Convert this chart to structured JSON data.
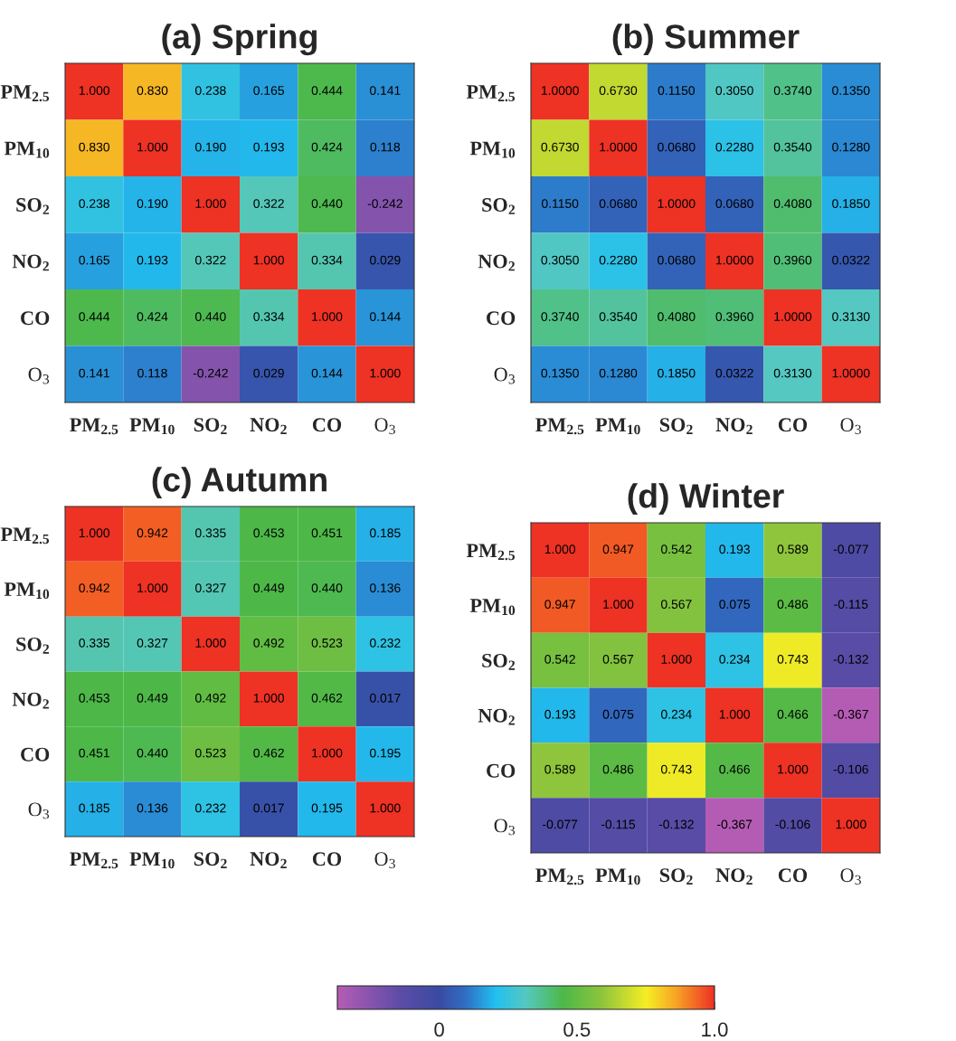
{
  "chart_data": [
    {
      "type": "heatmap",
      "title": "(a) Spring",
      "categories": [
        "PM$_{2.5}$",
        "PM$_{10}$",
        "SO$_{2}$",
        "NO$_{2}$",
        "CO",
        "O$_{3}$"
      ],
      "y_categories": [
        "PM$_{2.5}$",
        "PM$_{10}$",
        "SO$_{2}$",
        "NO$_{2}$",
        "CO",
        "O$_{3}$"
      ],
      "cells": [
        [
          1.0,
          0.83,
          0.238,
          0.165,
          0.444,
          0.141
        ],
        [
          0.83,
          1.0,
          0.19,
          0.193,
          0.424,
          0.118
        ],
        [
          0.238,
          0.19,
          1.0,
          0.322,
          0.44,
          -0.242
        ],
        [
          0.165,
          0.193,
          0.322,
          1.0,
          0.334,
          0.029
        ],
        [
          0.444,
          0.424,
          0.44,
          0.334,
          1.0,
          0.144
        ],
        [
          0.141,
          0.118,
          -0.242,
          0.029,
          0.144,
          1.0
        ]
      ],
      "cell_labels": [
        [
          "1.000",
          "0.830",
          "0.238",
          "0.165",
          "0.444",
          "0.141"
        ],
        [
          "0.830",
          "1.000",
          "0.190",
          "0.193",
          "0.424",
          "0.118"
        ],
        [
          "0.238",
          "0.190",
          "1.000",
          "0.322",
          "0.440",
          "-0.242"
        ],
        [
          "0.165",
          "0.193",
          "0.322",
          "1.000",
          "0.334",
          "0.029"
        ],
        [
          "0.444",
          "0.424",
          "0.440",
          "0.334",
          "1.000",
          "0.144"
        ],
        [
          "0.141",
          "0.118",
          "-0.242",
          "0.029",
          "0.144",
          "1.000"
        ]
      ]
    },
    {
      "type": "heatmap",
      "title": "(b) Summer",
      "categories": [
        "PM$_{2.5}$",
        "PM$_{10}$",
        "SO$_{2}$",
        "NO$_{2}$",
        "CO",
        "O$_{3}$"
      ],
      "y_categories": [
        "PM$_{2.5}$",
        "PM$_{10}$",
        "SO$_{2}$",
        "NO$_{2}$",
        "CO",
        "O$_{3}$"
      ],
      "cells": [
        [
          1.0,
          0.673,
          0.115,
          0.305,
          0.374,
          0.135
        ],
        [
          0.673,
          1.0,
          0.068,
          0.228,
          0.354,
          0.128
        ],
        [
          0.115,
          0.068,
          1.0,
          0.068,
          0.408,
          0.185
        ],
        [
          0.305,
          0.228,
          0.068,
          1.0,
          0.396,
          0.0322
        ],
        [
          0.374,
          0.354,
          0.408,
          0.396,
          1.0,
          0.313
        ],
        [
          0.135,
          0.128,
          0.185,
          0.0322,
          0.313,
          1.0
        ]
      ],
      "cell_labels": [
        [
          "1.0000",
          "0.6730",
          "0.1150",
          "0.3050",
          "0.3740",
          "0.1350"
        ],
        [
          "0.6730",
          "1.0000",
          "0.0680",
          "0.2280",
          "0.3540",
          "0.1280"
        ],
        [
          "0.1150",
          "0.0680",
          "1.0000",
          "0.0680",
          "0.4080",
          "0.1850"
        ],
        [
          "0.3050",
          "0.2280",
          "0.0680",
          "1.0000",
          "0.3960",
          "0.0322"
        ],
        [
          "0.3740",
          "0.3540",
          "0.4080",
          "0.3960",
          "1.0000",
          "0.3130"
        ],
        [
          "0.1350",
          "0.1280",
          "0.1850",
          "0.0322",
          "0.3130",
          "1.0000"
        ]
      ]
    },
    {
      "type": "heatmap",
      "title": "(c) Autumn",
      "categories": [
        "PM$_{2.5}$",
        "PM$_{10}$",
        "SO$_{2}$",
        "NO$_{2}$",
        "CO",
        "O$_{3}$"
      ],
      "y_categories": [
        "PM$_{2.5}$",
        "PM$_{10}$",
        "SO$_{2}$",
        "NO$_{2}$",
        "CO",
        "O$_{3}$"
      ],
      "cells": [
        [
          1.0,
          0.942,
          0.335,
          0.453,
          0.451,
          0.185
        ],
        [
          0.942,
          1.0,
          0.327,
          0.449,
          0.44,
          0.136
        ],
        [
          0.335,
          0.327,
          1.0,
          0.492,
          0.523,
          0.232
        ],
        [
          0.453,
          0.449,
          0.492,
          1.0,
          0.462,
          0.017
        ],
        [
          0.451,
          0.44,
          0.523,
          0.462,
          1.0,
          0.195
        ],
        [
          0.185,
          0.136,
          0.232,
          0.017,
          0.195,
          1.0
        ]
      ],
      "cell_labels": [
        [
          "1.000",
          "0.942",
          "0.335",
          "0.453",
          "0.451",
          "0.185"
        ],
        [
          "0.942",
          "1.000",
          "0.327",
          "0.449",
          "0.440",
          "0.136"
        ],
        [
          "0.335",
          "0.327",
          "1.000",
          "0.492",
          "0.523",
          "0.232"
        ],
        [
          "0.453",
          "0.449",
          "0.492",
          "1.000",
          "0.462",
          "0.017"
        ],
        [
          "0.451",
          "0.440",
          "0.523",
          "0.462",
          "1.000",
          "0.195"
        ],
        [
          "0.185",
          "0.136",
          "0.232",
          "0.017",
          "0.195",
          "1.000"
        ]
      ]
    },
    {
      "type": "heatmap",
      "title": "(d) Winter",
      "categories": [
        "PM$_{2.5}$",
        "PM$_{10}$",
        "SO$_{2}$",
        "NO$_{2}$",
        "CO",
        "O$_{3}$"
      ],
      "y_categories": [
        "PM$_{2.5}$",
        "PM$_{10}$",
        "SO$_{2}$",
        "NO$_{2}$",
        "CO",
        "O$_{3}$"
      ],
      "cells": [
        [
          1.0,
          0.947,
          0.542,
          0.193,
          0.589,
          -0.077
        ],
        [
          0.947,
          1.0,
          0.567,
          0.075,
          0.486,
          -0.115
        ],
        [
          0.542,
          0.567,
          1.0,
          0.234,
          0.743,
          -0.132
        ],
        [
          0.193,
          0.075,
          0.234,
          1.0,
          0.466,
          -0.367
        ],
        [
          0.589,
          0.486,
          0.743,
          0.466,
          1.0,
          -0.106
        ],
        [
          -0.077,
          -0.115,
          -0.132,
          -0.367,
          -0.106,
          1.0
        ]
      ],
      "cell_labels": [
        [
          "1.000",
          "0.947",
          "0.542",
          "0.193",
          "0.589",
          "-0.077"
        ],
        [
          "0.947",
          "1.000",
          "0.567",
          "0.075",
          "0.486",
          "-0.115"
        ],
        [
          "0.542",
          "0.567",
          "1.000",
          "0.234",
          "0.743",
          "-0.132"
        ],
        [
          "0.193",
          "0.075",
          "0.234",
          "1.000",
          "0.466",
          "-0.367"
        ],
        [
          "0.589",
          "0.486",
          "0.743",
          "0.466",
          "1.000",
          "-0.106"
        ],
        [
          "-0.077",
          "-0.115",
          "-0.132",
          "-0.367",
          "-0.106",
          "1.000"
        ]
      ],
      "clim": [
        -0.37,
        1.0
      ],
      "cticks": [
        0,
        0.5,
        {
          "value": 1,
          "label": "1.0"
        }
      ]
    }
  ]
}
